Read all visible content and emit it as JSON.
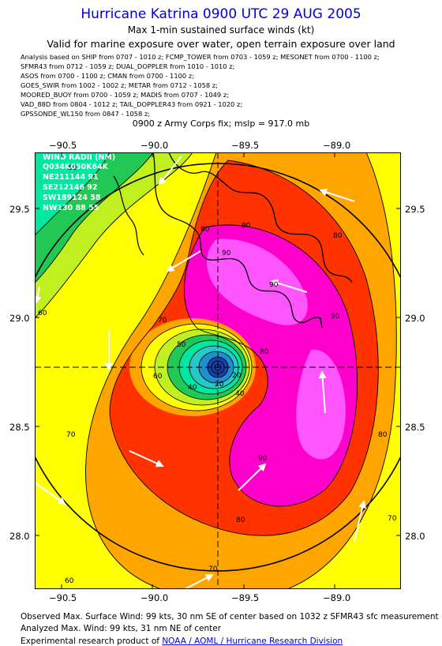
{
  "header": {
    "title": "Hurricane Katrina 0900 UTC 29 AUG 2005",
    "subtitle": "Max 1-min sustained surface winds (kt)",
    "subtitle2": "Valid for marine exposure over water, open terrain exposure over land"
  },
  "analysis_lines": [
    "Analysis based on  SHIP from 0707 - 1010 z;  FCMP_TOWER from 0703 - 1059 z;  MESONET from 0700 - 1100 z;",
    "SFMR43 from 0712 - 1059 z;  DUAL_DOPPLER from 1010 - 1010 z;",
    "ASOS from 0700 - 1100 z;  CMAN from 0700 - 1100 z;",
    "GOES_SWIR from 1002 - 1002 z;  METAR from 0712 - 1058 z;",
    "MOORED_BUOY from 0700 - 1059 z;  MADIS from 0707 - 1049 z;",
    "VAD_88D from 0804 - 1012 z;  TAIL_DOPPLER43 from 0921 - 1020 z;",
    "GPSSONDE_WL150 from 0847 - 1058 z;"
  ],
  "fix": "0900 z Army Corps fix; mslp = 917.0 mb",
  "axes": {
    "lon_labels": [
      "−90.5",
      "−90.0",
      "−89.5",
      "−89.0"
    ],
    "lat_labels": [
      "29.5",
      "29.0",
      "28.5",
      "28.0"
    ]
  },
  "wind_radii": {
    "title": "WIND RADII (NM)",
    "lines": [
      "Q034K050K64K",
      "NE211144 91",
      "SE212146 92",
      "SW189124 58",
      "NW130 88 55"
    ]
  },
  "contour_labels": [
    "50",
    "60",
    "60",
    "70",
    "70",
    "70",
    "70",
    "80",
    "80",
    "80",
    "80",
    "80",
    "90",
    "90",
    "90",
    "90",
    "90",
    "20",
    "20",
    "40",
    "40",
    "50",
    "60"
  ],
  "colors": {
    "title": "#0000dd",
    "wind_20": "#1a3fa8",
    "wind_40": "#28c8c8",
    "wind_50": "#22c855",
    "wind_60": "#c0f020",
    "wind_64": "#ffff00",
    "wind_70": "#ffa500",
    "wind_80": "#ff3300",
    "wind_90": "#ff00cc",
    "wind_max": "#ff55ff"
  },
  "footer": {
    "observed": "Observed Max. Surface Wind: 99 kts, 30 nm SE of center based on 1032 z SFMR43 sfc measurement",
    "analyzed": "Analyzed Max. Wind: 99 kts, 31 nm NE of center",
    "credit_prefix": "Experimental research product of ",
    "credit_link": "NOAA / AOML / Hurricane Research Division"
  }
}
